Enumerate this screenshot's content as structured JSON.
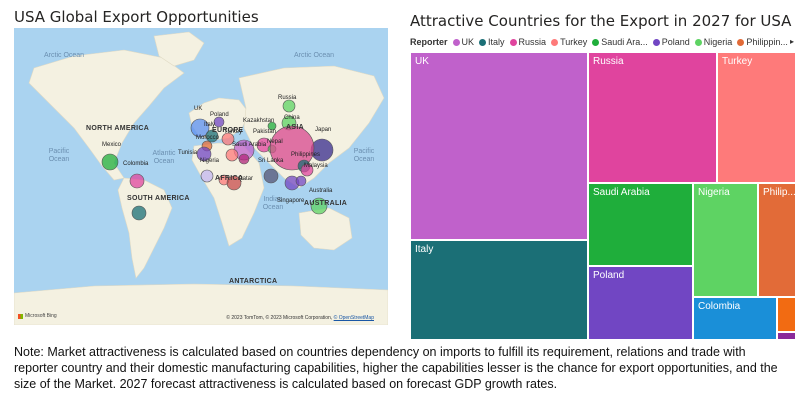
{
  "map": {
    "title": "USA Global Export Opportunities",
    "oceans": {
      "arctic_left": "Arctic Ocean",
      "arctic_right": "Arctic Ocean",
      "pacific_left": "Pacific Ocean",
      "pacific_right": "Pacific Ocean",
      "atlantic": "Atlantic Ocean",
      "indian": "Indian Ocean"
    },
    "regions": {
      "north_america": "NORTH AMERICA",
      "south_america": "SOUTH AMERICA",
      "europe": "EUROPE",
      "asia": "ASIA",
      "africa": "AFRICA",
      "australia": "AUSTRALIA",
      "antarctica": "ANTARCTICA"
    },
    "countries": {
      "uk": "UK",
      "poland": "Poland",
      "russia": "Russia",
      "italy": "Italy",
      "kazakhstan": "Kazakhstan",
      "china": "China",
      "japan": "Japan",
      "morocco": "Morocco",
      "turkey": "Turkey",
      "pakistan": "Pakistan",
      "mexico": "Mexico",
      "tunisia": "Tunisia",
      "saudi_arabia": "Saudi Arabia",
      "nepal": "Nepal",
      "philippines": "Philippines",
      "colombia": "Colombia",
      "nigeria": "Nigeria",
      "sri_lanka": "Sri Lanka",
      "malaysia": "Malaysia",
      "qatar": "Qatar",
      "singapore": "Singapore",
      "australia": "Australia"
    },
    "copyright": "© 2023 TomTom, © 2023 Microsoft Corporation,",
    "copyright_link": "© OpenStreetMap",
    "logo": "Microsoft Bing",
    "colors": {
      "ocean": "#aad3f0",
      "land": "#f4f1e1"
    }
  },
  "treemap": {
    "title": "Attractive Countries for the Export in 2027 for USA",
    "legend_label": "Reporter",
    "legend": [
      {
        "name": "UK",
        "color": "#c061cb"
      },
      {
        "name": "Italy",
        "color": "#1b6f76"
      },
      {
        "name": "Russia",
        "color": "#e0449e"
      },
      {
        "name": "Turkey",
        "color": "#fe7a7a"
      },
      {
        "name": "Saudi Ara...",
        "color": "#1fae3b"
      },
      {
        "name": "Poland",
        "color": "#7146c3"
      },
      {
        "name": "Nigeria",
        "color": "#5ed363"
      },
      {
        "name": "Philippin...",
        "color": "#e26b38"
      }
    ],
    "cells": {
      "uk": "UK",
      "russia": "Russia",
      "turkey": "Turkey",
      "italy": "Italy",
      "saudi_arabia": "Saudi Arabia",
      "nigeria": "Nigeria",
      "philippines": "Philip...",
      "poland": "Poland",
      "colombia": "Colombia"
    },
    "more_icon": "caret-right-icon"
  },
  "note": {
    "text": "Note: Market attractiveness is calculated based on countries dependency on imports to fulfill its requirement, relations and trade with reporter country and their domestic manufacturing capabilities, higher the capabilities lesser is the chance for export opportunities, and the size of the Market. 2027 forecast attractiveness is calculated based on forecast GDP growth rates."
  }
}
